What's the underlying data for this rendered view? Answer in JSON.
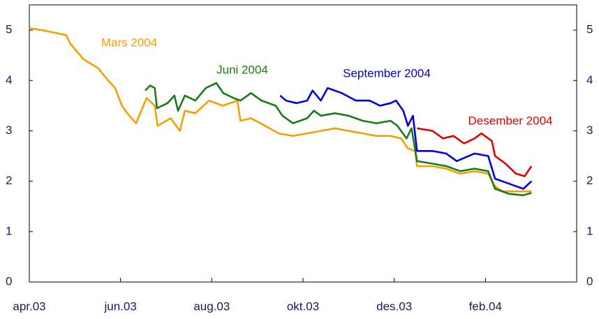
{
  "chart_data": {
    "type": "line",
    "xlim": [
      0,
      12
    ],
    "xticks": [
      {
        "value": 0,
        "label": "apr.03"
      },
      {
        "value": 2,
        "label": "jun.03"
      },
      {
        "value": 4,
        "label": "aug.03"
      },
      {
        "value": 6,
        "label": "okt.03"
      },
      {
        "value": 8,
        "label": "des.03"
      },
      {
        "value": 10,
        "label": "feb.04"
      }
    ],
    "ylim": [
      0,
      5.5
    ],
    "yticks": [
      0,
      1,
      2,
      3,
      4,
      5
    ],
    "y2lim": [
      0,
      5.5
    ],
    "y2ticks": [
      0,
      1,
      2,
      3,
      4,
      5
    ],
    "series": [
      {
        "name": "Mars 2004",
        "color": "#f5a000",
        "x": [
          0,
          0.28,
          0.81,
          0.89,
          1.19,
          1.5,
          1.73,
          1.88,
          2.03,
          2.19,
          2.34,
          2.57,
          2.75,
          2.81,
          3.1,
          3.3,
          3.41,
          3.64,
          3.94,
          4.24,
          4.56,
          4.63,
          4.86,
          5.17,
          5.47,
          5.78,
          6.09,
          6.39,
          6.7,
          7.0,
          7.31,
          7.61,
          7.92,
          8.15,
          8.3,
          8.46,
          8.5,
          8.84,
          9.14,
          9.45,
          9.76,
          10.06,
          10.21,
          10.37,
          10.67,
          11.01
        ],
        "values": [
          5.04,
          5.0,
          4.9,
          4.74,
          4.42,
          4.25,
          4.0,
          3.85,
          3.5,
          3.3,
          3.15,
          3.65,
          3.5,
          3.1,
          3.25,
          3.0,
          3.4,
          3.35,
          3.6,
          3.5,
          3.6,
          3.2,
          3.25,
          3.1,
          2.95,
          2.9,
          2.95,
          3.0,
          3.05,
          3.0,
          2.95,
          2.9,
          2.9,
          2.85,
          2.65,
          2.6,
          2.3,
          2.3,
          2.25,
          2.15,
          2.2,
          2.15,
          1.9,
          1.8,
          1.8,
          1.8
        ]
      },
      {
        "name": "Juni 2004",
        "color": "#1a7a1a",
        "x": [
          2.54,
          2.65,
          2.75,
          2.8,
          3.03,
          3.18,
          3.26,
          3.41,
          3.64,
          3.87,
          4.1,
          4.25,
          4.48,
          4.63,
          4.86,
          5.09,
          5.4,
          5.55,
          5.78,
          6.09,
          6.24,
          6.39,
          6.7,
          7.0,
          7.31,
          7.61,
          7.92,
          8.07,
          8.27,
          8.38,
          8.5,
          8.84,
          9.14,
          9.45,
          9.76,
          10.06,
          10.21,
          10.52,
          10.83,
          11.01
        ],
        "values": [
          3.8,
          3.9,
          3.85,
          3.45,
          3.55,
          3.7,
          3.4,
          3.7,
          3.6,
          3.85,
          3.95,
          3.75,
          3.65,
          3.6,
          3.75,
          3.6,
          3.5,
          3.3,
          3.15,
          3.25,
          3.4,
          3.3,
          3.35,
          3.3,
          3.2,
          3.15,
          3.2,
          3.1,
          2.85,
          3.05,
          2.4,
          2.35,
          2.3,
          2.2,
          2.25,
          2.2,
          1.85,
          1.75,
          1.72,
          1.77
        ]
      },
      {
        "name": "September 2004",
        "color": "#0000e0",
        "x": [
          5.5,
          5.63,
          5.86,
          6.09,
          6.21,
          6.39,
          6.54,
          6.85,
          7.16,
          7.46,
          7.69,
          7.92,
          8.04,
          8.2,
          8.3,
          8.41,
          8.5,
          8.84,
          9.14,
          9.37,
          9.76,
          10.06,
          10.21,
          10.52,
          10.83,
          11.01
        ],
        "values": [
          3.7,
          3.6,
          3.55,
          3.6,
          3.8,
          3.6,
          3.85,
          3.75,
          3.6,
          3.6,
          3.5,
          3.55,
          3.6,
          3.4,
          3.1,
          3.3,
          2.6,
          2.6,
          2.55,
          2.4,
          2.55,
          2.5,
          2.05,
          1.95,
          1.85,
          2.0
        ]
      },
      {
        "name": "Desember 2004",
        "color": "#e00000",
        "x": [
          8.5,
          8.84,
          9.07,
          9.3,
          9.53,
          9.76,
          9.91,
          10.14,
          10.21,
          10.44,
          10.67,
          10.86,
          11.01
        ],
        "values": [
          3.05,
          3.0,
          2.85,
          2.9,
          2.75,
          2.85,
          2.95,
          2.8,
          2.5,
          2.35,
          2.15,
          2.1,
          2.3
        ]
      }
    ]
  }
}
